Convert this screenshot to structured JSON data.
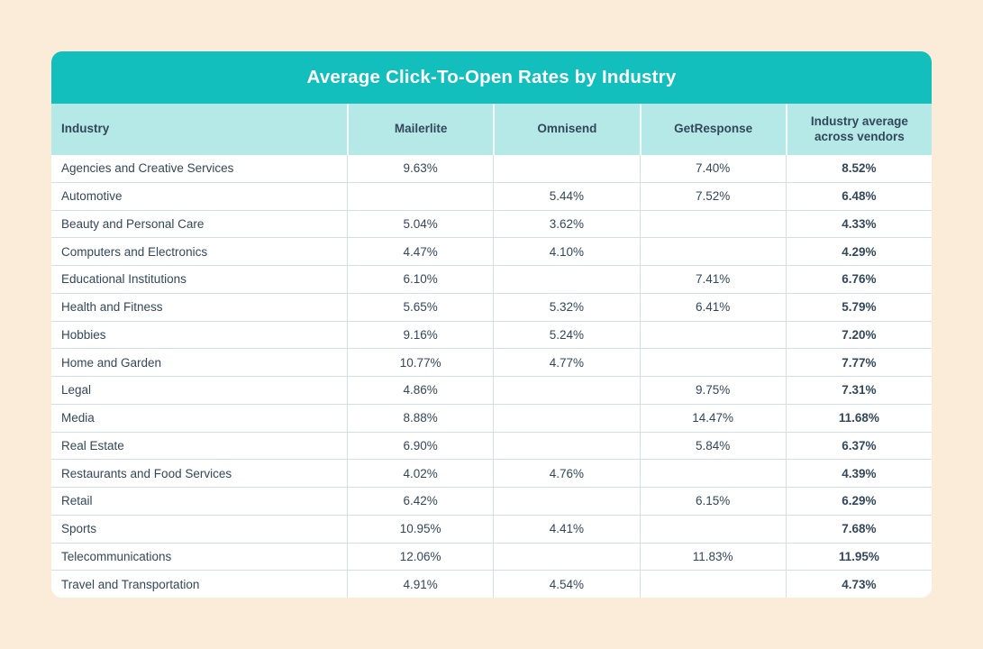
{
  "colors": {
    "page_background": "#fbecd9",
    "accent_teal": "#12bfbd",
    "header_light_teal": "#b5e9e7",
    "text_dark_navy": "#33475b",
    "divider": "#d3dfe8",
    "card_background": "#ffffff",
    "title_text": "#ffffff"
  },
  "table": {
    "title": "Average Click-To-Open Rates by Industry",
    "columns": [
      "Industry",
      "Mailerlite",
      "Omnisend",
      "GetResponse",
      "Industry average across vendors"
    ],
    "rows": [
      {
        "industry": "Agencies and Creative Services",
        "values": [
          "9.63%",
          "",
          "7.40%",
          "8.52%"
        ]
      },
      {
        "industry": "Automotive",
        "values": [
          "",
          "5.44%",
          "7.52%",
          "6.48%"
        ]
      },
      {
        "industry": "Beauty and Personal Care",
        "values": [
          "5.04%",
          "3.62%",
          "",
          "4.33%"
        ]
      },
      {
        "industry": "Computers and Electronics",
        "values": [
          "4.47%",
          "4.10%",
          "",
          "4.29%"
        ]
      },
      {
        "industry": "Educational Institutions",
        "values": [
          "6.10%",
          "",
          "7.41%",
          "6.76%"
        ]
      },
      {
        "industry": "Health and Fitness",
        "values": [
          "5.65%",
          "5.32%",
          "6.41%",
          "5.79%"
        ]
      },
      {
        "industry": "Hobbies",
        "values": [
          "9.16%",
          "5.24%",
          "",
          "7.20%"
        ]
      },
      {
        "industry": "Home and Garden",
        "values": [
          "10.77%",
          "4.77%",
          "",
          "7.77%"
        ]
      },
      {
        "industry": "Legal",
        "values": [
          "4.86%",
          "",
          "9.75%",
          "7.31%"
        ]
      },
      {
        "industry": "Media",
        "values": [
          "8.88%",
          "",
          "14.47%",
          "11.68%"
        ]
      },
      {
        "industry": "Real Estate",
        "values": [
          "6.90%",
          "",
          "5.84%",
          "6.37%"
        ]
      },
      {
        "industry": "Restaurants and Food Services",
        "values": [
          "4.02%",
          "4.76%",
          "",
          "4.39%"
        ]
      },
      {
        "industry": "Retail",
        "values": [
          "6.42%",
          "",
          "6.15%",
          "6.29%"
        ]
      },
      {
        "industry": "Sports",
        "values": [
          "10.95%",
          "4.41%",
          "",
          "7.68%"
        ]
      },
      {
        "industry": "Telecommunications",
        "values": [
          "12.06%",
          "",
          "11.83%",
          "11.95%"
        ]
      },
      {
        "industry": "Travel and Transportation",
        "values": [
          "4.91%",
          "4.54%",
          "",
          "4.73%"
        ]
      }
    ]
  },
  "chart_data": {
    "type": "table",
    "title": "Average Click-To-Open Rates by Industry",
    "unit": "%",
    "categories": [
      "Agencies and Creative Services",
      "Automotive",
      "Beauty and Personal Care",
      "Computers and Electronics",
      "Educational Institutions",
      "Health and Fitness",
      "Hobbies",
      "Home and Garden",
      "Legal",
      "Media",
      "Real Estate",
      "Restaurants and Food Services",
      "Retail",
      "Sports",
      "Telecommunications",
      "Travel and Transportation"
    ],
    "series": [
      {
        "name": "Mailerlite",
        "values": [
          9.63,
          null,
          5.04,
          4.47,
          6.1,
          5.65,
          9.16,
          10.77,
          4.86,
          8.88,
          6.9,
          4.02,
          6.42,
          10.95,
          12.06,
          4.91
        ]
      },
      {
        "name": "Omnisend",
        "values": [
          null,
          5.44,
          3.62,
          4.1,
          null,
          5.32,
          5.24,
          4.77,
          null,
          null,
          null,
          4.76,
          null,
          4.41,
          null,
          4.54
        ]
      },
      {
        "name": "GetResponse",
        "values": [
          7.4,
          7.52,
          null,
          null,
          7.41,
          6.41,
          null,
          null,
          9.75,
          14.47,
          5.84,
          null,
          6.15,
          null,
          11.83,
          null
        ]
      },
      {
        "name": "Industry average across vendors",
        "values": [
          8.52,
          6.48,
          4.33,
          4.29,
          6.76,
          5.79,
          7.2,
          7.77,
          7.31,
          11.68,
          6.37,
          4.39,
          6.29,
          7.68,
          11.95,
          4.73
        ]
      }
    ]
  }
}
